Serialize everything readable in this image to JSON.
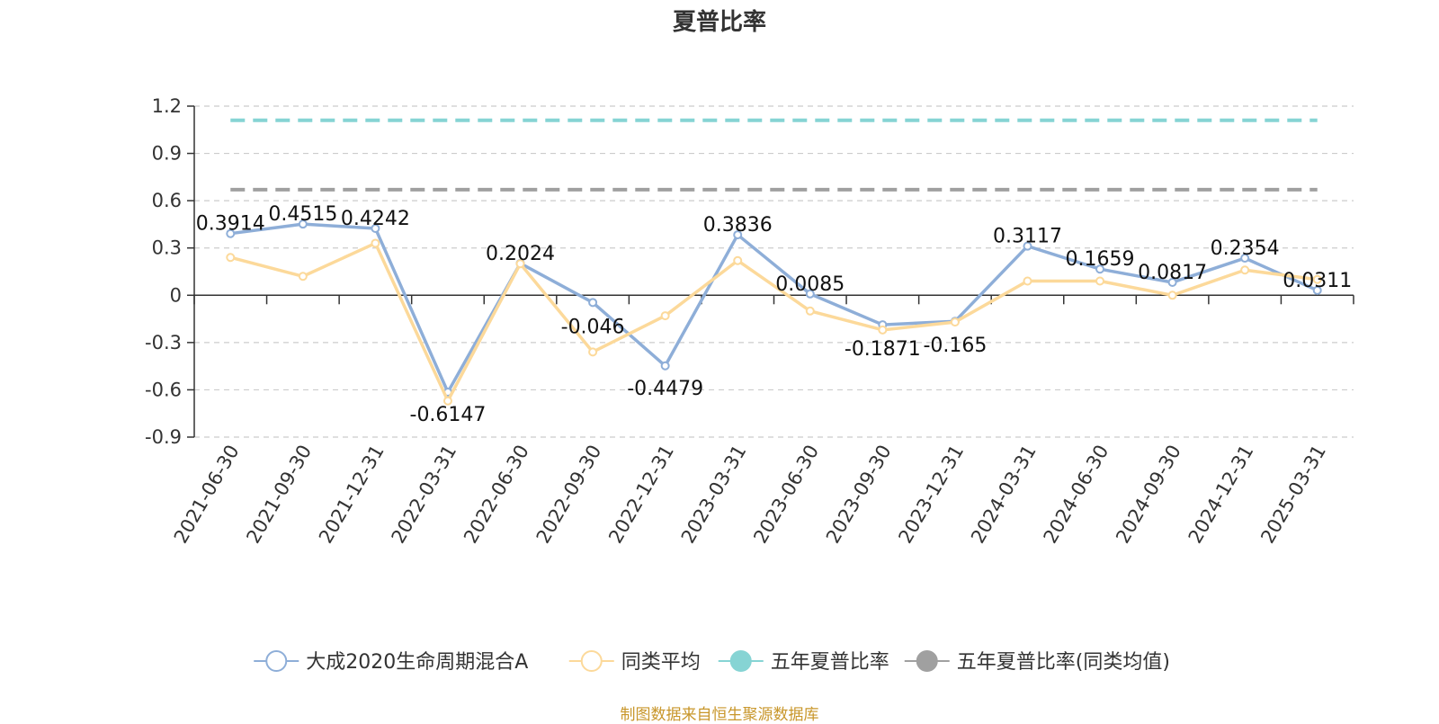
{
  "chart_data": {
    "type": "line",
    "title": "夏普比率",
    "x": [
      "2021-06-30",
      "2021-09-30",
      "2021-12-31",
      "2022-03-31",
      "2022-06-30",
      "2022-09-30",
      "2022-12-31",
      "2023-03-31",
      "2023-06-30",
      "2023-09-30",
      "2023-12-31",
      "2024-03-31",
      "2024-06-30",
      "2024-09-30",
      "2024-12-31",
      "2025-03-31"
    ],
    "ylim": [
      -0.9,
      1.2
    ],
    "yticks": [
      "1.2",
      "0.9",
      "0.6",
      "0.3",
      "0",
      "-0.3",
      "-0.6",
      "-0.9"
    ],
    "grid": true,
    "legend_position": "bottom",
    "series": [
      {
        "name": "大成2020生命周期混合A",
        "color": "#8eaed8",
        "values": [
          0.3914,
          0.4515,
          0.4242,
          -0.6147,
          0.2024,
          -0.046,
          -0.4479,
          0.3836,
          0.0085,
          -0.1871,
          -0.165,
          0.3117,
          0.1659,
          0.0817,
          0.2354,
          0.0311
        ],
        "labels": [
          "0.3914",
          "0.4515",
          "0.4242",
          "-0.6147",
          "0.2024",
          "-0.046",
          "-0.4479",
          "0.3836",
          "0.0085",
          "-0.1871",
          "-0.165",
          "0.3117",
          "0.1659",
          "0.0817",
          "0.2354",
          "0.0311"
        ]
      },
      {
        "name": "同类平均",
        "color": "#fcd99a",
        "values": [
          0.24,
          0.12,
          0.33,
          -0.67,
          0.2,
          -0.36,
          -0.13,
          0.22,
          -0.1,
          -0.22,
          -0.17,
          0.09,
          0.09,
          0.0,
          0.16,
          0.1
        ]
      },
      {
        "name": "五年夏普比率",
        "color": "#86d4d4",
        "constant": 1.11
      },
      {
        "name": "五年夏普比率(同类均值)",
        "color": "#a0a0a0",
        "constant": 0.67
      }
    ]
  },
  "source_note": "制图数据来自恒生聚源数据库"
}
